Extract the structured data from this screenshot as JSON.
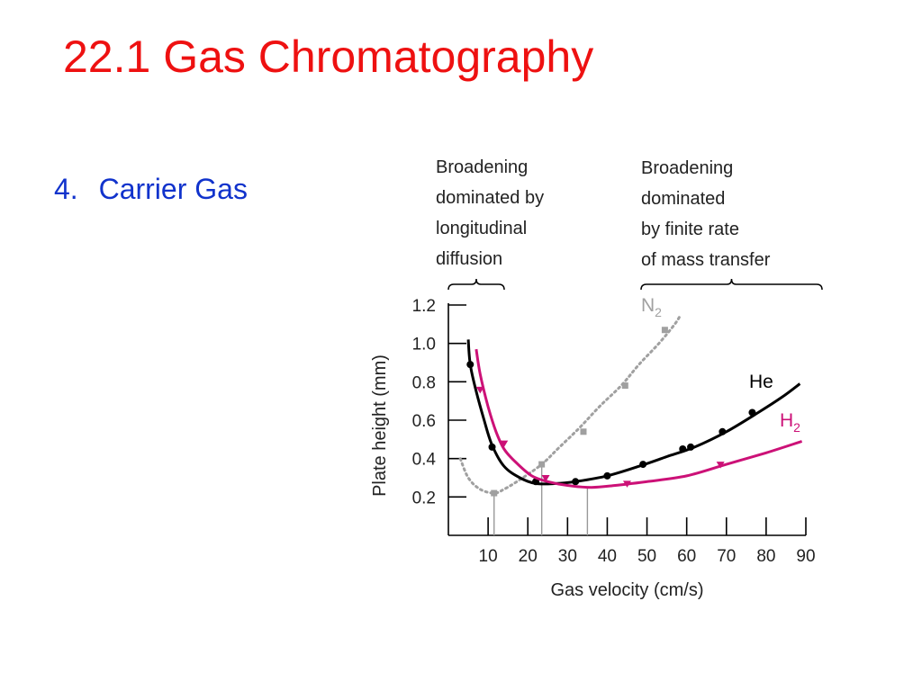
{
  "slide": {
    "title": "22.1 Gas Chromatography",
    "bullet_number": "4.",
    "bullet_text": "Carrier Gas"
  },
  "colors": {
    "title": "#ee1111",
    "bullet": "#1133cc",
    "he": "#000000",
    "h2": "#cc1177",
    "n2": "#a0a0a0",
    "axis": "#000000",
    "text": "#222222"
  },
  "chart_data": {
    "type": "line",
    "title": "",
    "xlabel": "Gas velocity (cm/s)",
    "ylabel": "Plate height (mm)",
    "xlim": [
      0,
      90
    ],
    "ylim": [
      0,
      1.2
    ],
    "x_ticks": [
      10,
      20,
      30,
      40,
      50,
      60,
      70,
      80,
      90
    ],
    "y_ticks": [
      0.2,
      0.4,
      0.6,
      0.8,
      1.0,
      1.2
    ],
    "y_tick_labels": [
      "0.2",
      "0.4",
      "0.6",
      "0.8",
      "1.0",
      "1.2"
    ],
    "grid": false,
    "series": [
      {
        "name": "N",
        "name_sub": "2",
        "color_key": "n2",
        "style": "dotted",
        "marker": "square",
        "curve": [
          [
            3,
            0.4
          ],
          [
            5,
            0.3
          ],
          [
            8,
            0.24
          ],
          [
            11.5,
            0.22
          ],
          [
            14,
            0.24
          ],
          [
            18,
            0.29
          ],
          [
            23.5,
            0.37
          ],
          [
            28,
            0.46
          ],
          [
            33,
            0.56
          ],
          [
            38,
            0.67
          ],
          [
            43.5,
            0.78
          ],
          [
            48,
            0.89
          ],
          [
            53,
            1.0
          ],
          [
            57,
            1.1
          ],
          [
            58.5,
            1.15
          ]
        ],
        "markers": [
          [
            11.5,
            0.22
          ],
          [
            23.5,
            0.37
          ],
          [
            34,
            0.54
          ],
          [
            44.5,
            0.78
          ],
          [
            54.5,
            1.07
          ]
        ]
      },
      {
        "name": "He",
        "color_key": "he",
        "style": "solid",
        "marker": "circle",
        "curve": [
          [
            5,
            1.02
          ],
          [
            5.5,
            0.89
          ],
          [
            7,
            0.75
          ],
          [
            9,
            0.6
          ],
          [
            11,
            0.47
          ],
          [
            14,
            0.36
          ],
          [
            18,
            0.3
          ],
          [
            22,
            0.27
          ],
          [
            27,
            0.27
          ],
          [
            32,
            0.28
          ],
          [
            40,
            0.31
          ],
          [
            48,
            0.36
          ],
          [
            55,
            0.41
          ],
          [
            62,
            0.46
          ],
          [
            70,
            0.54
          ],
          [
            78,
            0.64
          ],
          [
            84,
            0.72
          ],
          [
            88.5,
            0.79
          ]
        ],
        "markers": [
          [
            5.5,
            0.89
          ],
          [
            11,
            0.46
          ],
          [
            22,
            0.28
          ],
          [
            32,
            0.28
          ],
          [
            40,
            0.31
          ],
          [
            49,
            0.37
          ],
          [
            59,
            0.45
          ],
          [
            61,
            0.46
          ],
          [
            69,
            0.54
          ],
          [
            76.5,
            0.64
          ]
        ]
      },
      {
        "name": "H",
        "name_sub": "2",
        "color_key": "h2",
        "style": "solid",
        "marker": "triangle",
        "curve": [
          [
            7,
            0.97
          ],
          [
            8,
            0.84
          ],
          [
            10,
            0.67
          ],
          [
            12,
            0.54
          ],
          [
            14,
            0.45
          ],
          [
            17,
            0.38
          ],
          [
            21,
            0.31
          ],
          [
            25,
            0.28
          ],
          [
            30,
            0.26
          ],
          [
            36,
            0.25
          ],
          [
            42,
            0.26
          ],
          [
            50,
            0.28
          ],
          [
            60,
            0.31
          ],
          [
            70,
            0.37
          ],
          [
            80,
            0.43
          ],
          [
            89,
            0.49
          ]
        ],
        "markers": [
          [
            8,
            0.76
          ],
          [
            14,
            0.48
          ],
          [
            24.5,
            0.3
          ],
          [
            45,
            0.27
          ],
          [
            68.5,
            0.37
          ]
        ]
      }
    ],
    "optimum_lines": [
      {
        "x": 11.5,
        "y": 0.22
      },
      {
        "x": 23.5,
        "y": 0.37
      },
      {
        "x": 35,
        "y": 0.25
      }
    ],
    "annotations": [
      {
        "id": "left",
        "lines": [
          "Broadening",
          "dominated by",
          "longitudinal",
          "diffusion"
        ]
      },
      {
        "id": "right",
        "lines": [
          "Broadening",
          "dominated",
          "by finite rate",
          "of mass transfer"
        ]
      }
    ]
  }
}
